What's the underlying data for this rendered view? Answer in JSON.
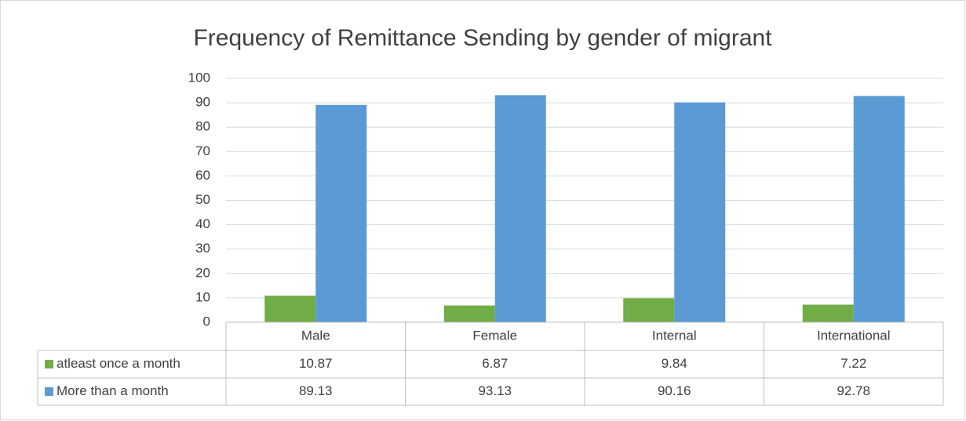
{
  "chart_data": {
    "type": "bar",
    "title": "Frequency of Remittance Sending by gender of migrant",
    "categories": [
      "Male",
      "Female",
      "Internal",
      "International"
    ],
    "series": [
      {
        "name": "atleast once a month",
        "color": "#70ad47",
        "values": [
          10.87,
          6.87,
          9.84,
          7.22
        ]
      },
      {
        "name": "More than a month",
        "color": "#5b9bd5",
        "values": [
          89.13,
          93.13,
          90.16,
          92.78
        ]
      }
    ],
    "ylim": [
      0,
      100
    ],
    "yticks": [
      0,
      10,
      20,
      30,
      40,
      50,
      60,
      70,
      80,
      90,
      100
    ],
    "grid": true,
    "data_table": true
  }
}
